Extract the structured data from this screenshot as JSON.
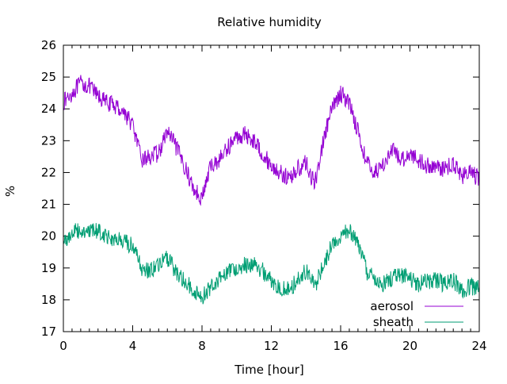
{
  "chart_data": {
    "type": "line",
    "title": "Relative humidity",
    "xlabel": "Time [hour]",
    "ylabel": "%",
    "xlim": [
      0,
      24
    ],
    "ylim": [
      17,
      26
    ],
    "xticks": [
      0,
      4,
      8,
      12,
      16,
      20,
      24
    ],
    "yticks": [
      17,
      18,
      19,
      20,
      21,
      22,
      23,
      24,
      25,
      26
    ],
    "grid": false,
    "legend_position": "bottom-right",
    "series": [
      {
        "name": "aerosol",
        "color": "#9400d3",
        "x": [
          0,
          0.5,
          1,
          1.5,
          2,
          2.5,
          3,
          3.5,
          4,
          4.5,
          5,
          5.5,
          6,
          6.5,
          7,
          7.5,
          8,
          8.5,
          9,
          9.5,
          10,
          10.5,
          11,
          11.5,
          12,
          12.5,
          13,
          13.5,
          14,
          14.5,
          15,
          15.5,
          16,
          16.5,
          17,
          17.5,
          18,
          18.5,
          19,
          19.5,
          20,
          20.5,
          21,
          21.5,
          22,
          22.5,
          23,
          23.5,
          24
        ],
        "values": [
          24.2,
          24.5,
          24.8,
          24.7,
          24.4,
          24.2,
          24.1,
          23.9,
          23.5,
          22.4,
          22.5,
          22.6,
          23.3,
          22.8,
          22.2,
          21.5,
          21.2,
          22.2,
          22.4,
          22.8,
          23.1,
          23.2,
          23.0,
          22.6,
          22.2,
          22.0,
          21.8,
          22.1,
          22.3,
          21.6,
          23.0,
          24.0,
          24.5,
          24.2,
          23.3,
          22.3,
          22.0,
          22.3,
          22.7,
          22.4,
          22.6,
          22.4,
          22.2,
          22.2,
          22.1,
          22.3,
          21.9,
          22.0,
          21.8
        ]
      },
      {
        "name": "sheath",
        "color": "#009e73",
        "x": [
          0,
          0.5,
          1,
          1.5,
          2,
          2.5,
          3,
          3.5,
          4,
          4.5,
          5,
          5.5,
          6,
          6.5,
          7,
          7.5,
          8,
          8.5,
          9,
          9.5,
          10,
          10.5,
          11,
          11.5,
          12,
          12.5,
          13,
          13.5,
          14,
          14.5,
          15,
          15.5,
          16,
          16.5,
          17,
          17.5,
          18,
          18.5,
          19,
          19.5,
          20,
          20.5,
          21,
          21.5,
          22,
          22.5,
          23,
          23.5,
          24
        ],
        "values": [
          19.8,
          20.1,
          20.2,
          20.1,
          20.2,
          20.0,
          19.9,
          19.8,
          19.7,
          19.0,
          18.9,
          19.1,
          19.3,
          18.9,
          18.6,
          18.3,
          18.1,
          18.4,
          18.7,
          18.9,
          19.0,
          19.1,
          19.1,
          18.9,
          18.6,
          18.4,
          18.3,
          18.6,
          18.9,
          18.4,
          19.1,
          19.7,
          20.0,
          20.2,
          19.8,
          18.9,
          18.6,
          18.5,
          18.7,
          18.8,
          18.7,
          18.5,
          18.6,
          18.6,
          18.5,
          18.6,
          18.3,
          18.4,
          18.4
        ]
      }
    ]
  }
}
